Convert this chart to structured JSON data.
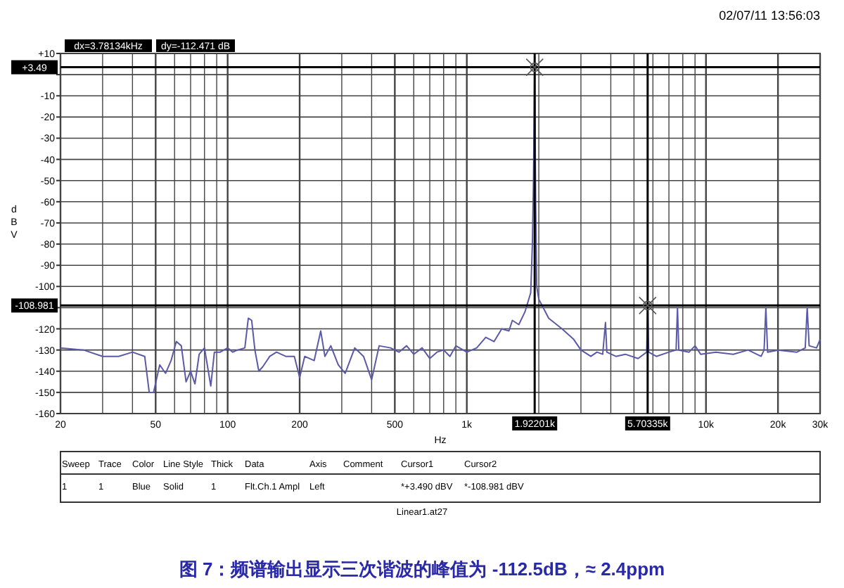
{
  "chart_data": {
    "type": "line",
    "xlabel": "Hz",
    "ylabel": "dBV",
    "log": "x",
    "grid": true,
    "marker": "none",
    "line_style": "solid",
    "xlim": [
      20,
      30000
    ],
    "ylim": [
      -160,
      10
    ],
    "xticks": [
      20,
      {
        "value": 30,
        "label": null
      },
      {
        "value": 40,
        "label": null
      },
      50,
      {
        "value": 60,
        "label": null
      },
      {
        "value": 70,
        "label": null
      },
      {
        "value": 80,
        "label": null
      },
      {
        "value": 90,
        "label": null
      },
      100,
      200,
      {
        "value": 300,
        "label": null
      },
      {
        "value": 400,
        "label": null
      },
      500,
      {
        "value": 600,
        "label": null
      },
      {
        "value": 700,
        "label": null
      },
      {
        "value": 800,
        "label": null
      },
      {
        "value": 900,
        "label": null
      },
      {
        "value": 1000,
        "label": "1k"
      },
      {
        "value": 2000,
        "label": null
      },
      {
        "value": 3000,
        "label": null
      },
      {
        "value": 4000,
        "label": null
      },
      {
        "value": 5000,
        "label": null
      },
      {
        "value": 6000,
        "label": null
      },
      {
        "value": 7000,
        "label": null
      },
      {
        "value": 8000,
        "label": null
      },
      {
        "value": 9000,
        "label": null
      },
      {
        "value": 10000,
        "label": "10k"
      },
      {
        "value": 20000,
        "label": "20k"
      },
      {
        "value": 30000,
        "label": "30k"
      }
    ],
    "yticks": [
      {
        "value": 10,
        "label": "+10"
      },
      {
        "value": 0,
        "label": null
      },
      -10,
      -20,
      -30,
      -40,
      -50,
      -60,
      -70,
      -80,
      -90,
      -100,
      {
        "value": -110,
        "label": null
      },
      -120,
      -130,
      -140,
      -150,
      -160
    ],
    "series": [
      {
        "color": "#5a5aa8",
        "x": [
          20,
          25,
          30,
          35,
          40,
          45,
          47,
          49,
          52,
          55,
          58,
          61,
          64,
          67,
          70,
          73,
          76,
          80,
          85,
          88,
          93,
          100,
          105,
          110,
          118,
          122,
          126,
          130,
          135,
          140,
          150,
          160,
          175,
          190,
          200,
          210,
          230,
          245,
          255,
          270,
          290,
          310,
          340,
          370,
          400,
          430,
          480,
          520,
          560,
          600,
          650,
          700,
          750,
          800,
          850,
          900,
          1000,
          1100,
          1200,
          1300,
          1400,
          1500,
          1550,
          1650,
          1750,
          1850,
          1880,
          1900,
          1922,
          1940,
          1960,
          2000,
          2200,
          2500,
          2800,
          3000,
          3300,
          3500,
          3700,
          3800,
          3850,
          4200,
          4600,
          5200,
          5650,
          5703,
          5760,
          6200,
          7000,
          7500,
          7600,
          7700,
          8500,
          9000,
          9500,
          11000,
          13000,
          15000,
          17000,
          17500,
          17800,
          18100,
          20000,
          24000,
          26000,
          26500,
          27000,
          29000,
          30000
        ],
        "values": [
          -129,
          -130,
          -133,
          -133,
          -131,
          -133,
          -150,
          -150,
          -137,
          -141,
          -135,
          -126,
          -128,
          -145,
          -140,
          -146,
          -132,
          -129,
          -147,
          -131,
          -131,
          -129,
          -131,
          -130,
          -129,
          -115,
          -116,
          -130,
          -140,
          -138,
          -133,
          -131,
          -133,
          -133,
          -143,
          -133,
          -135,
          -121,
          -133,
          -128,
          -137,
          -141,
          -129,
          -133,
          -144,
          -128,
          -129,
          -131,
          -128,
          -132,
          -129,
          -134,
          -131,
          -130,
          -133,
          -128,
          -131,
          -129,
          -124,
          -126,
          -120,
          -121,
          -116,
          -118,
          -112,
          -103,
          -80,
          -50,
          3.49,
          -60,
          -100,
          -106,
          -115,
          -120,
          -125,
          -130,
          -133,
          -131,
          -132,
          -117,
          -131,
          -133,
          -132,
          -134,
          -131,
          -109,
          -131,
          -133,
          -131,
          -130,
          -110,
          -130,
          -131,
          -128,
          -132,
          -131,
          -132,
          -130,
          -133,
          -130,
          -110,
          -131,
          -130,
          -131,
          -129,
          -110,
          -128,
          -129,
          -125
        ]
      }
    ],
    "ref_lines": [
      {
        "axis": "y",
        "value": 3.49,
        "label": "+3.49"
      },
      {
        "axis": "y",
        "value": -108.981,
        "label": "-108.981"
      },
      {
        "axis": "x",
        "value": 1922.01,
        "label": "1.92201k"
      },
      {
        "axis": "x",
        "value": 5703.35,
        "label": "5.70335k"
      }
    ],
    "annotations": [
      "02/07/11 13:56:03",
      "dx=3.78134kHz",
      "dy=-112.471 dB",
      "Linear1.at27",
      "图 7：频谱输出显示三次谐波的峰值为 -112.5dB，≈ 2.4ppm",
      "Sweep",
      "Trace",
      "Color",
      "Line Style",
      "Thick",
      "Data",
      "Axis",
      "Comment",
      "Cursor1",
      "Cursor2",
      "1",
      "1",
      "Blue",
      "Solid",
      "1",
      "Flt.Ch.1 Ampl",
      "Left",
      "*+3.490  dBV",
      "*-108.981 dBV"
    ]
  }
}
